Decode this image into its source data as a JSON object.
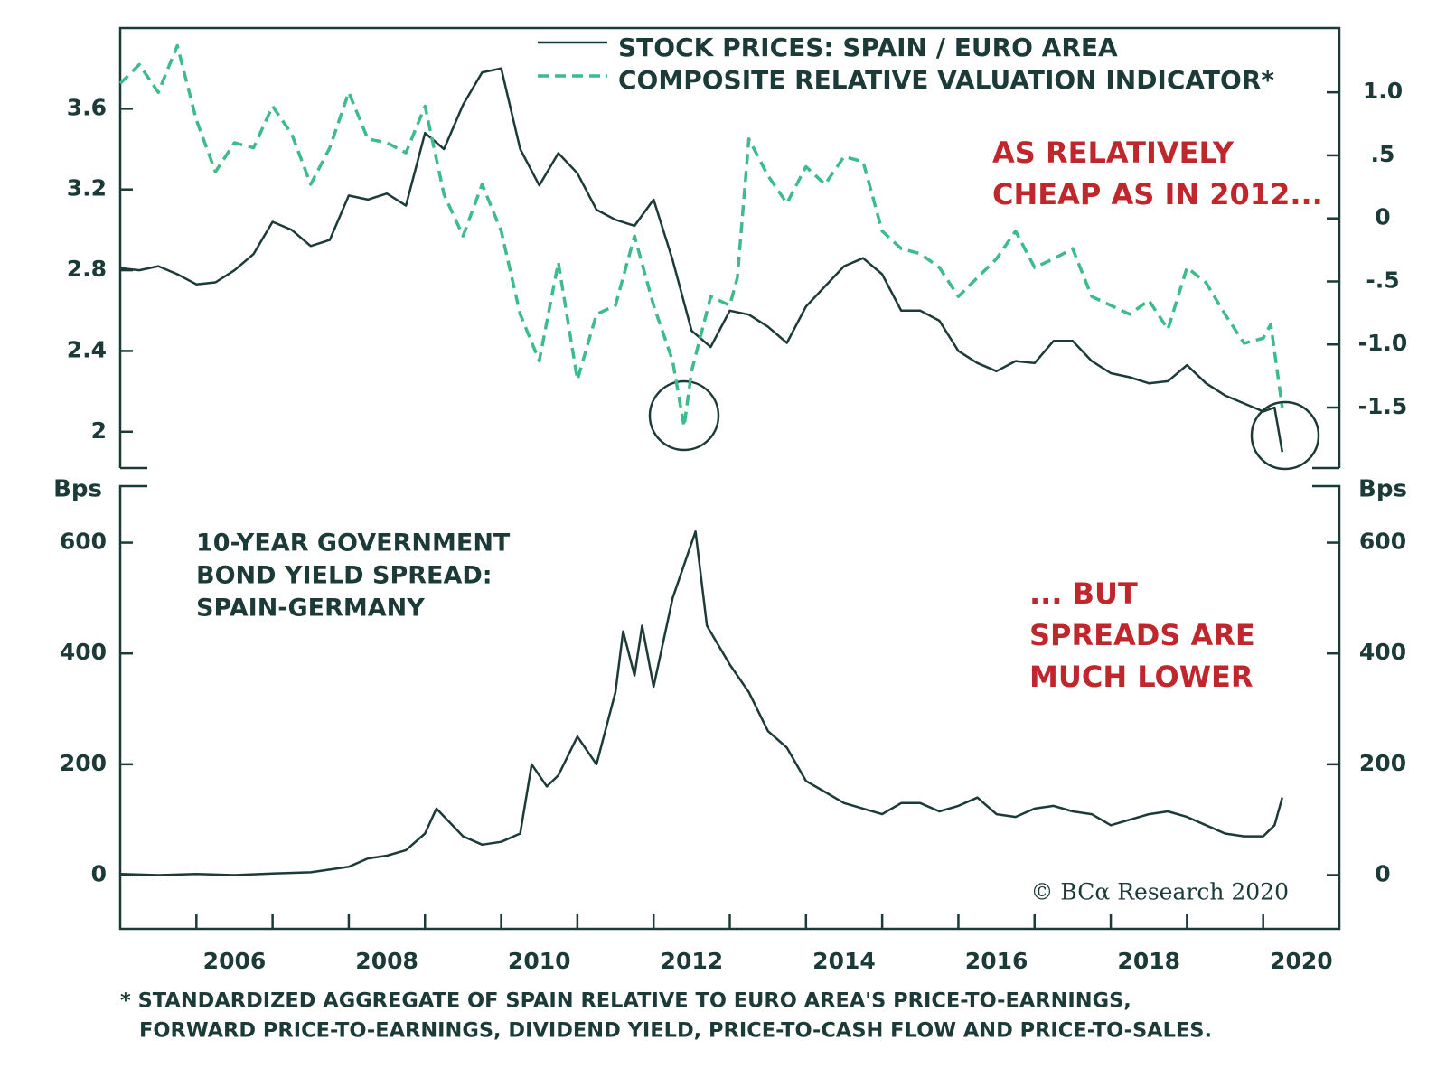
{
  "chart_data": [
    {
      "type": "line",
      "xlim": [
        2005,
        2021
      ],
      "ylim": [
        1.82,
        4.0
      ],
      "yticks": [
        2.0,
        2.4,
        2.8,
        3.2,
        3.6
      ],
      "y2lim": [
        -1.98,
        1.51
      ],
      "y2ticks": [
        {
          "value": -1.5,
          "label": "-1.5"
        },
        {
          "value": -1.0,
          "label": "-1.0"
        },
        {
          "value": -0.5,
          "label": "-.5"
        },
        0,
        {
          "value": 0.5,
          "label": ".5"
        },
        {
          "value": 1.0,
          "label": "1.0"
        }
      ],
      "annotations": [
        "AS RELATIVELY",
        "CHEAP AS IN 2012..."
      ],
      "series": [
        {
          "name": "STOCK PRICES: SPAIN / EURO AREA",
          "color": "#1b3a38",
          "dashed": false,
          "x": [
            2005.0,
            2005.25,
            2005.5,
            2005.75,
            2006.0,
            2006.25,
            2006.5,
            2006.75,
            2007.0,
            2007.25,
            2007.5,
            2007.75,
            2008.0,
            2008.25,
            2008.5,
            2008.75,
            2009.0,
            2009.25,
            2009.5,
            2009.75,
            2010.0,
            2010.25,
            2010.5,
            2010.75,
            2011.0,
            2011.25,
            2011.5,
            2011.75,
            2012.0,
            2012.25,
            2012.5,
            2012.75,
            2013.0,
            2013.25,
            2013.5,
            2013.75,
            2014.0,
            2014.25,
            2014.5,
            2014.75,
            2015.0,
            2015.25,
            2015.5,
            2015.75,
            2016.0,
            2016.25,
            2016.5,
            2016.75,
            2017.0,
            2017.25,
            2017.5,
            2017.75,
            2018.0,
            2018.25,
            2018.5,
            2018.75,
            2019.0,
            2019.25,
            2019.5,
            2019.75,
            2020.0,
            2020.15,
            2020.25
          ],
          "values": [
            2.81,
            2.8,
            2.82,
            2.78,
            2.73,
            2.74,
            2.8,
            2.88,
            3.04,
            3.0,
            2.92,
            2.95,
            3.17,
            3.15,
            3.18,
            3.12,
            3.48,
            3.4,
            3.62,
            3.78,
            3.8,
            3.4,
            3.22,
            3.38,
            3.28,
            3.1,
            3.05,
            3.02,
            3.15,
            2.85,
            2.5,
            2.42,
            2.6,
            2.58,
            2.52,
            2.44,
            2.62,
            2.72,
            2.82,
            2.86,
            2.78,
            2.6,
            2.6,
            2.55,
            2.4,
            2.34,
            2.3,
            2.35,
            2.34,
            2.45,
            2.45,
            2.35,
            2.29,
            2.27,
            2.24,
            2.25,
            2.33,
            2.24,
            2.18,
            2.14,
            2.1,
            2.12,
            1.9
          ]
        },
        {
          "name": "COMPOSITE RELATIVE VALUATION INDICATOR*",
          "color": "#3dbb8b",
          "dashed": true,
          "axis": "y2",
          "x": [
            2005.0,
            2005.25,
            2005.5,
            2005.75,
            2006.0,
            2006.25,
            2006.5,
            2006.75,
            2007.0,
            2007.25,
            2007.5,
            2007.75,
            2008.0,
            2008.25,
            2008.5,
            2008.75,
            2009.0,
            2009.25,
            2009.5,
            2009.75,
            2010.0,
            2010.25,
            2010.5,
            2010.75,
            2011.0,
            2011.25,
            2011.5,
            2011.75,
            2012.0,
            2012.25,
            2012.4,
            2012.5,
            2012.75,
            2013.0,
            2013.1,
            2013.25,
            2013.5,
            2013.75,
            2014.0,
            2014.25,
            2014.5,
            2014.75,
            2015.0,
            2015.25,
            2015.5,
            2015.75,
            2016.0,
            2016.25,
            2016.5,
            2016.75,
            2017.0,
            2017.25,
            2017.5,
            2017.75,
            2018.0,
            2018.25,
            2018.5,
            2018.75,
            2019.0,
            2019.25,
            2019.5,
            2019.75,
            2020.0,
            2020.1,
            2020.25
          ],
          "values": [
            1.07,
            1.22,
            1.0,
            1.37,
            0.78,
            0.37,
            0.6,
            0.56,
            0.89,
            0.67,
            0.27,
            0.56,
            1.0,
            0.63,
            0.6,
            0.52,
            0.89,
            0.19,
            -0.14,
            0.27,
            -0.1,
            -0.76,
            -1.13,
            -0.35,
            -1.28,
            -0.76,
            -0.69,
            -0.14,
            -0.69,
            -1.13,
            -1.65,
            -1.21,
            -0.62,
            -0.69,
            -0.47,
            0.63,
            0.34,
            0.12,
            0.41,
            0.27,
            0.49,
            0.45,
            -0.1,
            -0.24,
            -0.28,
            -0.39,
            -0.62,
            -0.47,
            -0.32,
            -0.1,
            -0.39,
            -0.32,
            -0.24,
            -0.62,
            -0.69,
            -0.76,
            -0.65,
            -0.88,
            -0.39,
            -0.51,
            -0.76,
            -0.99,
            -0.95,
            -0.84,
            -1.5
          ]
        }
      ]
    },
    {
      "type": "line",
      "title": [
        "10-YEAR GOVERNMENT",
        "BOND YIELD SPREAD:",
        "SPAIN-GERMANY"
      ],
      "annotations": [
        "... BUT",
        "SPREADS ARE",
        "MUCH LOWER"
      ],
      "ylabel": "Bps",
      "xlim": [
        2005,
        2021
      ],
      "xticks": [
        2006,
        2008,
        2010,
        2012,
        2014,
        2016,
        2018,
        2020
      ],
      "xminor_ticks": [
        2007,
        2009,
        2011,
        2013,
        2015,
        2017,
        2019
      ],
      "ylim": [
        -97,
        702
      ],
      "yticks": [
        0,
        200,
        400,
        600
      ],
      "series": [
        {
          "color": "#1b3a38",
          "x": [
            2005.0,
            2005.5,
            2006.0,
            2006.5,
            2007.0,
            2007.5,
            2008.0,
            2008.25,
            2008.5,
            2008.75,
            2009.0,
            2009.15,
            2009.5,
            2009.75,
            2010.0,
            2010.25,
            2010.4,
            2010.6,
            2010.75,
            2011.0,
            2011.25,
            2011.5,
            2011.6,
            2011.75,
            2011.85,
            2012.0,
            2012.25,
            2012.4,
            2012.55,
            2012.7,
            2013.0,
            2013.25,
            2013.5,
            2013.75,
            2014.0,
            2014.25,
            2014.5,
            2014.75,
            2015.0,
            2015.25,
            2015.5,
            2015.75,
            2016.0,
            2016.25,
            2016.5,
            2016.75,
            2017.0,
            2017.25,
            2017.5,
            2017.75,
            2018.0,
            2018.25,
            2018.5,
            2018.75,
            2019.0,
            2019.25,
            2019.5,
            2019.75,
            2020.0,
            2020.15,
            2020.25
          ],
          "values": [
            2,
            0,
            2,
            0,
            3,
            5,
            15,
            30,
            35,
            45,
            75,
            120,
            70,
            55,
            60,
            75,
            200,
            160,
            180,
            250,
            200,
            330,
            440,
            360,
            450,
            340,
            500,
            560,
            620,
            450,
            380,
            330,
            260,
            230,
            170,
            150,
            130,
            120,
            110,
            130,
            130,
            115,
            125,
            140,
            110,
            105,
            120,
            125,
            115,
            110,
            90,
            100,
            110,
            115,
            105,
            90,
            75,
            70,
            70,
            90,
            140
          ]
        }
      ]
    }
  ],
  "source": "© BCα Research 2020",
  "footnote": [
    "* STANDARDIZED AGGREGATE OF SPAIN RELATIVE TO EURO AREA'S PRICE-TO-EARNINGS,",
    "FORWARD PRICE-TO-EARNINGS, DIVIDEND YIELD, PRICE-TO-CASH FLOW AND PRICE-TO-SALES."
  ]
}
